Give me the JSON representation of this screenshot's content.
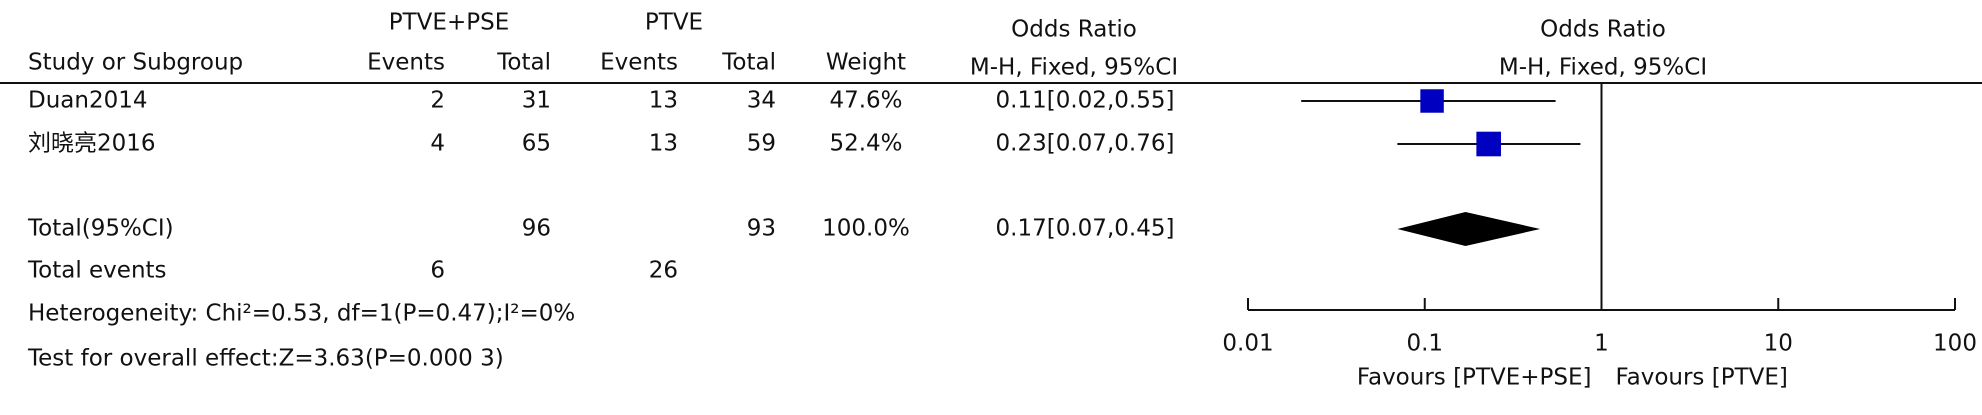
{
  "chart_data": {
    "type": "forest",
    "group_headers": [
      "PTVE+PSE",
      "PTVE"
    ],
    "column_headers": [
      "Study or Subgroup",
      "Events",
      "Total",
      "Events",
      "Total",
      "Weight"
    ],
    "or_header": [
      "Odds Ratio",
      "M-H, Fixed, 95%CI"
    ],
    "plot_header": [
      "Odds Ratio",
      "M-H, Fixed, 95%CI"
    ],
    "studies": [
      {
        "name": "Duan2014",
        "events_exp": 2,
        "total_exp": 31,
        "events_ctrl": 13,
        "total_ctrl": 34,
        "weight": {
          "value": 47.6,
          "label": "47.6%"
        },
        "or": 0.11,
        "ci": [
          0.02,
          0.55
        ],
        "or_label": "0.11[0.02,0.55]"
      },
      {
        "name": "刘晓亮2016",
        "events_exp": 4,
        "total_exp": 65,
        "events_ctrl": 13,
        "total_ctrl": 59,
        "weight": {
          "value": 52.4,
          "label": "52.4%"
        },
        "or": 0.23,
        "ci": [
          0.07,
          0.76
        ],
        "or_label": "0.23[0.07,0.76]"
      }
    ],
    "total": {
      "name": "Total(95%CI)",
      "total_exp": 96,
      "total_ctrl": 93,
      "weight": {
        "value": 100.0,
        "label": "100.0%"
      },
      "or": 0.17,
      "ci": [
        0.07,
        0.45
      ],
      "or_label": "0.17[0.07,0.45]"
    },
    "total_events": {
      "name": "Total events",
      "events_exp": 6,
      "events_ctrl": 26
    },
    "heterogeneity": "Heterogeneity: Chi²=0.53, df=1(P=0.47);I²=0%",
    "overall_effect": "Test for overall effect:Z=3.63(P=0.000 3)",
    "xlim": [
      0.01,
      100
    ],
    "xticks": [
      0.01,
      0.1,
      1,
      10,
      100
    ],
    "log_x": true,
    "reference": 1,
    "favours": [
      "Favours [PTVE+PSE]",
      "Favours [PTVE]"
    ],
    "marker_color": "#0000c0",
    "diamond_color": "#000000"
  }
}
